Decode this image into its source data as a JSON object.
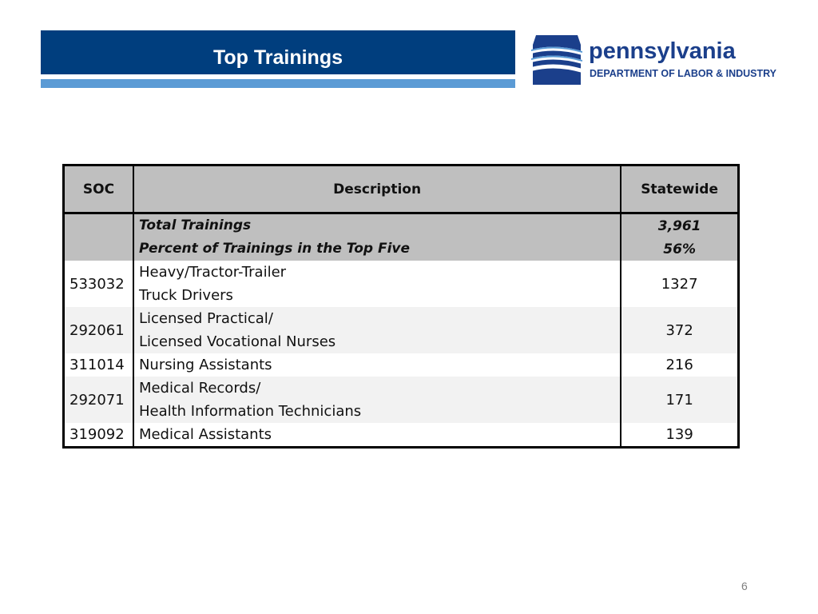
{
  "header": {
    "title": "Top Trainings"
  },
  "logo": {
    "name": "pennsylvania",
    "subtitle": "DEPARTMENT OF LABOR & INDUSTRY",
    "icon": "keystone-icon",
    "colors": {
      "primary": "#1b3f8b",
      "accent": "#5b9bd5"
    }
  },
  "table": {
    "headers": {
      "soc": "SOC",
      "description": "Description",
      "statewide": "Statewide"
    },
    "summary": {
      "total_label": "Total Trainings",
      "total_value": "3,961",
      "percent_label": "Percent of Trainings in the Top Five",
      "percent_value": "56%"
    },
    "rows": [
      {
        "soc": "533032",
        "description_line1": "Heavy/Tractor-Trailer",
        "description_line2": "Truck Drivers",
        "statewide": "1327"
      },
      {
        "soc": "292061",
        "description_line1": "Licensed Practical/",
        "description_line2": "Licensed Vocational Nurses",
        "statewide": "372"
      },
      {
        "soc": "311014",
        "description_line1": "Nursing Assistants",
        "description_line2": "",
        "statewide": "216"
      },
      {
        "soc": "292071",
        "description_line1": "Medical Records/",
        "description_line2": "Health Information Technicians",
        "statewide": "171"
      },
      {
        "soc": "319092",
        "description_line1": "Medical Assistants",
        "description_line2": "",
        "statewide": "139"
      }
    ]
  },
  "footer": {
    "page_number": "6"
  },
  "colors": {
    "title_bar": "#003e7e",
    "stripe": "#5b9bd5",
    "header_fill": "#bfbfbf"
  }
}
